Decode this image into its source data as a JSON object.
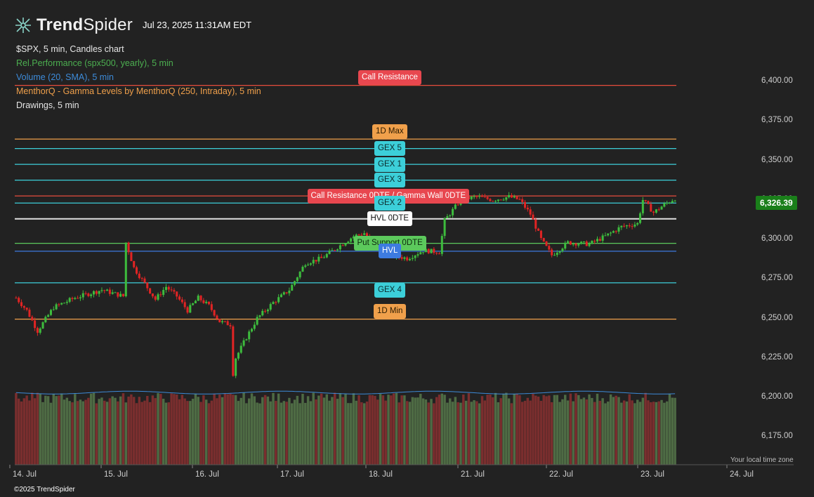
{
  "brand": {
    "name_bold": "Trend",
    "name_light": "Spider",
    "icon": "trendspider-logo-icon"
  },
  "timestamp": "Jul 23, 2025 11:31AM EDT",
  "legend": {
    "symbol_line": "$SPX, 5 min, Candles chart",
    "indicators": [
      {
        "label": "Rel.Performance (spx500, yearly), 5 min",
        "color": "#4caf50"
      },
      {
        "label": "Volume (20, SMA), 5 min",
        "color": "#3d8bd9"
      },
      {
        "label": "MenthorQ - Gamma Levels by MenthorQ (250, Intraday), 5 min",
        "color": "#f0a04b"
      },
      {
        "label": "Drawings, 5 min",
        "color": "#e6e6e6"
      }
    ]
  },
  "price_badge": "6,326.39",
  "timezone_label": "Your local time zone",
  "copyright": "©2025 TrendSpider",
  "colors": {
    "up": "#3dbb3d",
    "down": "#e02424",
    "vol_up": "#4e6b44",
    "vol_down": "#7a2e2e",
    "vol_sma": "#3d8bd9",
    "gex": "#3ccfd9",
    "resistance": "#e74c3c",
    "orange": "#f0a04b",
    "hvl": "#e0e0e0",
    "support": "#5cc95c",
    "blue": "#3d7be0"
  },
  "chart_data": {
    "type": "candlestick",
    "symbol": "$SPX",
    "interval": "5 min",
    "ylim": [
      6165,
      6410
    ],
    "y_ticks": [
      "6,400.00",
      "6,375.00",
      "6,350.00",
      "6,325.00",
      "6,300.00",
      "6,275.00",
      "6,250.00",
      "6,225.00",
      "6,200.00",
      "6,175.00"
    ],
    "x_ticks": [
      "14. Jul",
      "15. Jul",
      "16. Jul",
      "17. Jul",
      "18. Jul",
      "21. Jul",
      "22. Jul",
      "23. Jul",
      "24. Jul"
    ],
    "close_path": [
      [
        0,
        6263
      ],
      [
        4,
        6255
      ],
      [
        8,
        6242
      ],
      [
        14,
        6257
      ],
      [
        22,
        6263
      ],
      [
        32,
        6268
      ],
      [
        40,
        6264
      ],
      [
        41,
        6298
      ],
      [
        44,
        6282
      ],
      [
        48,
        6272
      ],
      [
        52,
        6262
      ],
      [
        56,
        6270
      ],
      [
        60,
        6264
      ],
      [
        64,
        6255
      ],
      [
        68,
        6263
      ],
      [
        72,
        6258
      ],
      [
        76,
        6248
      ],
      [
        80,
        6246
      ],
      [
        81,
        6215
      ],
      [
        82,
        6225
      ],
      [
        86,
        6238
      ],
      [
        90,
        6250
      ],
      [
        96,
        6260
      ],
      [
        102,
        6268
      ],
      [
        108,
        6285
      ],
      [
        114,
        6288
      ],
      [
        120,
        6295
      ],
      [
        126,
        6302
      ],
      [
        130,
        6304
      ],
      [
        134,
        6296
      ],
      [
        140,
        6290
      ],
      [
        146,
        6288
      ],
      [
        152,
        6293
      ],
      [
        158,
        6292
      ],
      [
        160,
        6312
      ],
      [
        166,
        6325
      ],
      [
        172,
        6327
      ],
      [
        178,
        6325
      ],
      [
        184,
        6327
      ],
      [
        188,
        6325
      ],
      [
        192,
        6316
      ],
      [
        196,
        6300
      ],
      [
        200,
        6290
      ],
      [
        206,
        6298
      ],
      [
        214,
        6297
      ],
      [
        220,
        6302
      ],
      [
        226,
        6308
      ],
      [
        232,
        6310
      ],
      [
        234,
        6325
      ],
      [
        238,
        6317
      ],
      [
        242,
        6322
      ],
      [
        246,
        6326
      ]
    ],
    "volume_sma_level": 6203,
    "levels": [
      {
        "label": "Call Resistance",
        "value": 6397.5,
        "color_key": "resistance"
      },
      {
        "label": "1D Max",
        "value": 6363.5,
        "color_key": "orange"
      },
      {
        "label": "GEX 5",
        "value": 6357.5,
        "color_key": "gex"
      },
      {
        "label": "GEX 1",
        "value": 6347.5,
        "color_key": "gex"
      },
      {
        "label": "GEX 3",
        "value": 6337.5,
        "color_key": "gex"
      },
      {
        "label": "Call Resistance 0DTE / Gamma Wall 0DTE",
        "value": 6327.5,
        "color_key": "resistance"
      },
      {
        "label": "GEX 2",
        "value": 6323,
        "color_key": "gex"
      },
      {
        "label": "HVL 0DTE",
        "value": 6313,
        "color_key": "hvl"
      },
      {
        "label": "Put Support 0DTE",
        "value": 6297.5,
        "color_key": "support"
      },
      {
        "label": "HVL",
        "value": 6292.5,
        "color_key": "blue"
      },
      {
        "label": "GEX 4",
        "value": 6272.5,
        "color_key": "gex"
      },
      {
        "label": "1D Min",
        "value": 6249.5,
        "color_key": "orange"
      }
    ]
  }
}
